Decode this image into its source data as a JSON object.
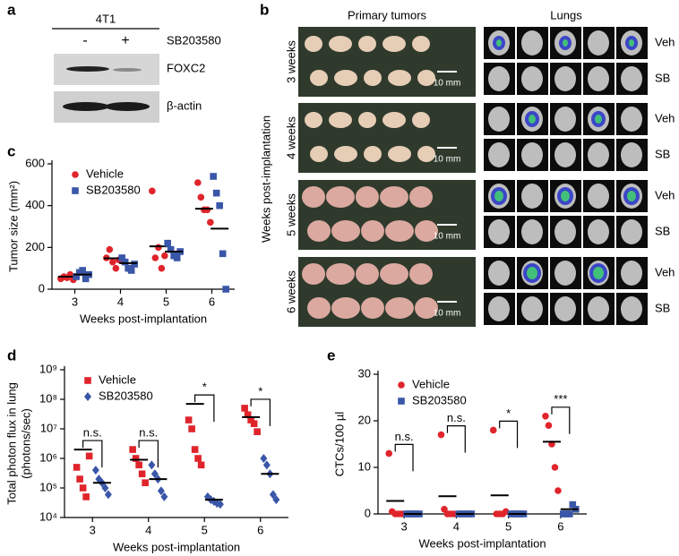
{
  "panels": {
    "a": {
      "label": "a",
      "cell_line": "4T1",
      "treatments": [
        "-",
        "+"
      ],
      "treatment_name": "SB203580",
      "bands": [
        "FOXC2",
        "β-actin"
      ]
    },
    "b": {
      "label": "b",
      "columns": [
        "Primary tumors",
        "Lungs"
      ],
      "y_label": "Weeks post-implantation",
      "rows": [
        {
          "label": "3 weeks",
          "scale": "10 mm",
          "lungs": [
            "Veh",
            "SB"
          ]
        },
        {
          "label": "4 weeks",
          "scale": "10 mm",
          "lungs": [
            "Veh",
            "SB"
          ]
        },
        {
          "label": "5 weeks",
          "scale": "10 mm",
          "lungs": [
            "Veh",
            "SB"
          ]
        },
        {
          "label": "6 weeks",
          "scale": "10 mm",
          "lungs": [
            "Veh",
            "SB"
          ]
        }
      ]
    }
  },
  "chart_data": [
    {
      "type": "scatter",
      "panel_label": "c",
      "y_label": [
        "Tumor size (mm²)"
      ],
      "x_label": "Weeks post-implantation",
      "categories": [
        "3",
        "4",
        "5",
        "6"
      ],
      "ylim": [
        0,
        600
      ],
      "yticks": [
        0,
        200,
        400,
        600
      ],
      "legend": "upper left",
      "series": [
        {
          "name": "Vehicle",
          "color": "#e0242b",
          "marker": "circle",
          "values": [
            [
              50,
              60,
              55,
              70,
              45
            ],
            [
              150,
              190,
              130,
              100,
              140
            ],
            [
              470,
              150,
              200,
              100,
              160
            ],
            [
              510,
              440,
              380,
              380,
              320
            ]
          ],
          "means": [
            60,
            148,
            205,
            385
          ]
        },
        {
          "name": "SB203580",
          "color": "#3a56a8",
          "marker": "square",
          "values": [
            [
              60,
              80,
              90,
              50,
              70
            ],
            [
              150,
              130,
              100,
              90,
              120
            ],
            [
              220,
              190,
              160,
              150,
              180
            ],
            [
              540,
              460,
              400,
              170,
              0
            ]
          ],
          "means": [
            70,
            125,
            180,
            290
          ]
        }
      ]
    },
    {
      "type": "scatter",
      "panel_label": "d",
      "y_label": [
        "Total photon flux in lung",
        "(photons/sec)"
      ],
      "x_label": "Weeks post-implantation",
      "categories": [
        "3",
        "4",
        "5",
        "6"
      ],
      "log_y": true,
      "ylim": [
        10000,
        1000000000
      ],
      "yticks": [
        {
          "value": 10000,
          "label": "10⁴"
        },
        {
          "value": 100000,
          "label": "10⁵"
        },
        {
          "value": 1000000,
          "label": "10⁶"
        },
        {
          "value": 10000000,
          "label": "10⁷"
        },
        {
          "value": 100000000,
          "label": "10⁸"
        },
        {
          "value": 1000000000,
          "label": "10⁹"
        }
      ],
      "legend": "upper left",
      "significance": [
        "n.s.",
        "n.s.",
        "*",
        "*"
      ],
      "series": [
        {
          "name": "Vehicle",
          "color": "#e0242b",
          "marker": "square",
          "values": [
            [
              500000,
              200000,
              100000,
              50000,
              1200000
            ],
            [
              2000000,
              1000000,
              600000,
              300000,
              150000
            ],
            [
              20000000,
              10000000,
              2000000,
              1000000,
              600000
            ],
            [
              50000000,
              30000000,
              20000000,
              15000000,
              8000000
            ]
          ],
          "means": [
            2000000,
            900000,
            70000000,
            25000000
          ]
        },
        {
          "name": "SB203580",
          "color": "#3a56a8",
          "marker": "diamond",
          "values": [
            [
              400000,
              200000,
              150000,
              100000,
              60000
            ],
            [
              600000,
              300000,
              200000,
              80000,
              50000
            ],
            [
              50000,
              40000,
              35000,
              30000,
              28000
            ],
            [
              1000000,
              600000,
              300000,
              60000,
              40000
            ]
          ],
          "means": [
            150000,
            200000,
            40000,
            300000
          ]
        }
      ]
    },
    {
      "type": "scatter",
      "panel_label": "e",
      "y_label": [
        "CTCs/100 µl"
      ],
      "x_label": "Weeks post-implantation",
      "categories": [
        "3",
        "4",
        "5",
        "6"
      ],
      "ylim": [
        0,
        30
      ],
      "yticks": [
        0,
        10,
        20,
        30
      ],
      "legend": "upper left",
      "significance": [
        "n.s.",
        "n.s.",
        "*",
        "***"
      ],
      "series": [
        {
          "name": "Vehicle",
          "color": "#e0242b",
          "marker": "circle",
          "values": [
            [
              13,
              0.5,
              0,
              0,
              0
            ],
            [
              17,
              1,
              0,
              0,
              0
            ],
            [
              18,
              0,
              0,
              0,
              0.5
            ],
            [
              21,
              19,
              15,
              10,
              5
            ]
          ],
          "means": [
            2.8,
            3.8,
            4,
            15.5
          ]
        },
        {
          "name": "SB203580",
          "color": "#3a56a8",
          "marker": "square",
          "values": [
            [
              0,
              0,
              0,
              0,
              0
            ],
            [
              0,
              0,
              0,
              0,
              0
            ],
            [
              0,
              0,
              0,
              0,
              0
            ],
            [
              0,
              0,
              0,
              2,
              1
            ]
          ],
          "means": [
            0,
            0,
            0,
            1
          ]
        }
      ]
    }
  ]
}
